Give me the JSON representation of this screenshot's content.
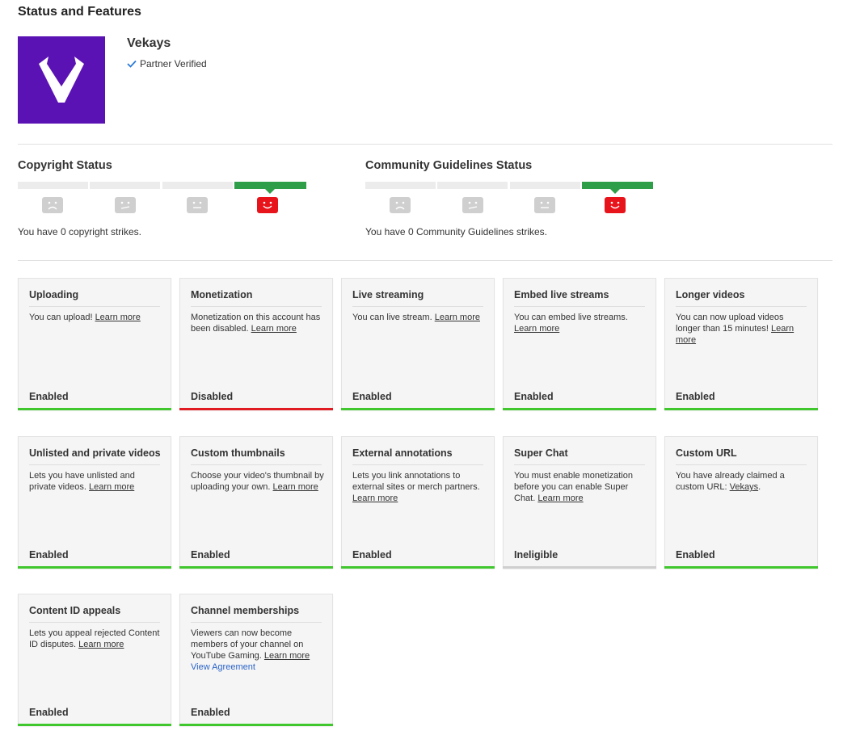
{
  "page": {
    "title": "Status and Features"
  },
  "channel": {
    "name": "Vekays",
    "verified_label": "Partner Verified"
  },
  "colors": {
    "brand": "#5b12b4",
    "good": "#2e9e48",
    "strike_face": "#e8141b",
    "enabled_bar": "#41c72e",
    "disabled_bar": "#e01b22",
    "ineligible_bar": "#cfcfcf",
    "link_blue": "#2a63c8"
  },
  "copyright": {
    "title": "Copyright Status",
    "strikes_text": "You have 0 copyright strikes.",
    "active_level": 4,
    "levels": 4
  },
  "community": {
    "title": "Community Guidelines Status",
    "strikes_text": "You have 0 Community Guidelines strikes.",
    "active_level": 4,
    "levels": 4
  },
  "features": [
    {
      "title": "Uploading",
      "text": "You can upload!",
      "link": "Learn more",
      "suffix": "",
      "status": "Enabled",
      "state": "enabled"
    },
    {
      "title": "Monetization",
      "text": "Monetization on this account has been disabled.",
      "link": "Learn more",
      "suffix": "",
      "status": "Disabled",
      "state": "disabled"
    },
    {
      "title": "Live streaming",
      "text": "You can live stream.",
      "link": "Learn more",
      "suffix": "",
      "status": "Enabled",
      "state": "enabled"
    },
    {
      "title": "Embed live streams",
      "text": "You can embed live streams.",
      "link": "Learn more",
      "suffix": "",
      "status": "Enabled",
      "state": "enabled"
    },
    {
      "title": "Longer videos",
      "text": "You can now upload videos longer than 15 minutes!",
      "link": "Learn more",
      "suffix": "",
      "status": "Enabled",
      "state": "enabled"
    },
    {
      "title": "Unlisted and private videos",
      "text": "Lets you have unlisted and private videos.",
      "link": "Learn more",
      "suffix": "",
      "status": "Enabled",
      "state": "enabled"
    },
    {
      "title": "Custom thumbnails",
      "text": "Choose your video's thumbnail by uploading your own.",
      "link": "Learn more",
      "suffix": "",
      "status": "Enabled",
      "state": "enabled"
    },
    {
      "title": "External annotations",
      "text": "Lets you link annotations to external sites or merch partners.",
      "link": "Learn more",
      "suffix": "",
      "status": "Enabled",
      "state": "enabled"
    },
    {
      "title": "Super Chat",
      "text": "You must enable monetization before you can enable Super Chat.",
      "link": "Learn more",
      "suffix": "",
      "status": "Ineligible",
      "state": "ineligible"
    },
    {
      "title": "Custom URL",
      "text": "You have already claimed a custom URL:",
      "link": "Vekays",
      "suffix": ".",
      "status": "Enabled",
      "state": "enabled"
    },
    {
      "title": "Content ID appeals",
      "text": "Lets you appeal rejected Content ID disputes.",
      "link": "Learn more",
      "suffix": "",
      "status": "Enabled",
      "state": "enabled"
    },
    {
      "title": "Channel memberships",
      "text": "Viewers can now become members of your channel on YouTube Gaming.",
      "link": "Learn more",
      "suffix": "",
      "extra_link": "View Agreement",
      "status": "Enabled",
      "state": "enabled"
    }
  ]
}
